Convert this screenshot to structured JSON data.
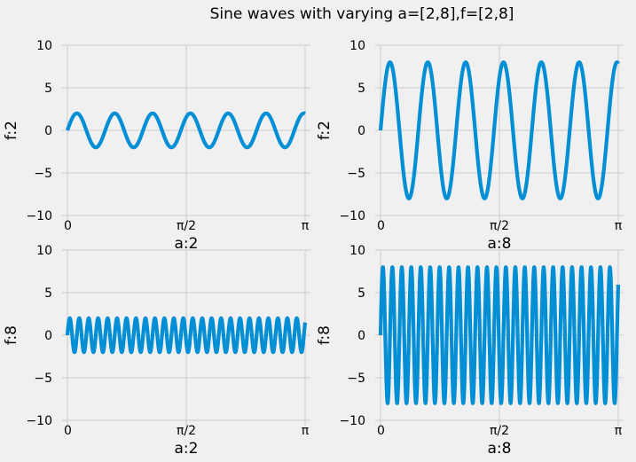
{
  "chart_data": {
    "suptitle": "Sine waves with varying a=[2,8],f=[2,8]",
    "style": {
      "background": "#f0f0f0",
      "line_color": "#008fd5",
      "grid": true,
      "grid_color": "#cbcbcb"
    },
    "x_range": [
      0,
      3.14159
    ],
    "x_tick_values": [
      0,
      1.5708,
      3.14159
    ],
    "x_tick_labels": [
      "0",
      "π/2",
      "π"
    ],
    "subplots": [
      {
        "type": "line",
        "function": "a*sin(f*2*pi*x)",
        "a": 2,
        "f": 2,
        "xlabel": "a:2",
        "ylabel": "f:2",
        "ylim": [
          -10,
          10
        ],
        "yticks": [
          -10,
          -5,
          0,
          5,
          10
        ],
        "ytick_labels": [
          "−10",
          "−5",
          "0",
          "5",
          "10"
        ]
      },
      {
        "type": "line",
        "function": "a*sin(f*2*pi*x)",
        "a": 8,
        "f": 2,
        "xlabel": "a:8",
        "ylabel": "f:2",
        "ylim": [
          -10,
          10
        ],
        "yticks": [
          -10,
          -5,
          0,
          5,
          10
        ],
        "ytick_labels": [
          "−10",
          "−5",
          "0",
          "5",
          "10"
        ]
      },
      {
        "type": "line",
        "function": "a*sin(f*2*pi*x)",
        "a": 2,
        "f": 8,
        "xlabel": "a:2",
        "ylabel": "f:8",
        "ylim": [
          -10,
          10
        ],
        "yticks": [
          -10,
          -5,
          0,
          5,
          10
        ],
        "ytick_labels": [
          "−10",
          "−5",
          "0",
          "5",
          "10"
        ]
      },
      {
        "type": "line",
        "function": "a*sin(f*2*pi*x)",
        "a": 8,
        "f": 8,
        "xlabel": "a:8",
        "ylabel": "f:8",
        "ylim": [
          -10,
          10
        ],
        "yticks": [
          -10,
          -5,
          0,
          5,
          10
        ],
        "ytick_labels": [
          "−10",
          "−5",
          "0",
          "5",
          "10"
        ]
      }
    ]
  }
}
